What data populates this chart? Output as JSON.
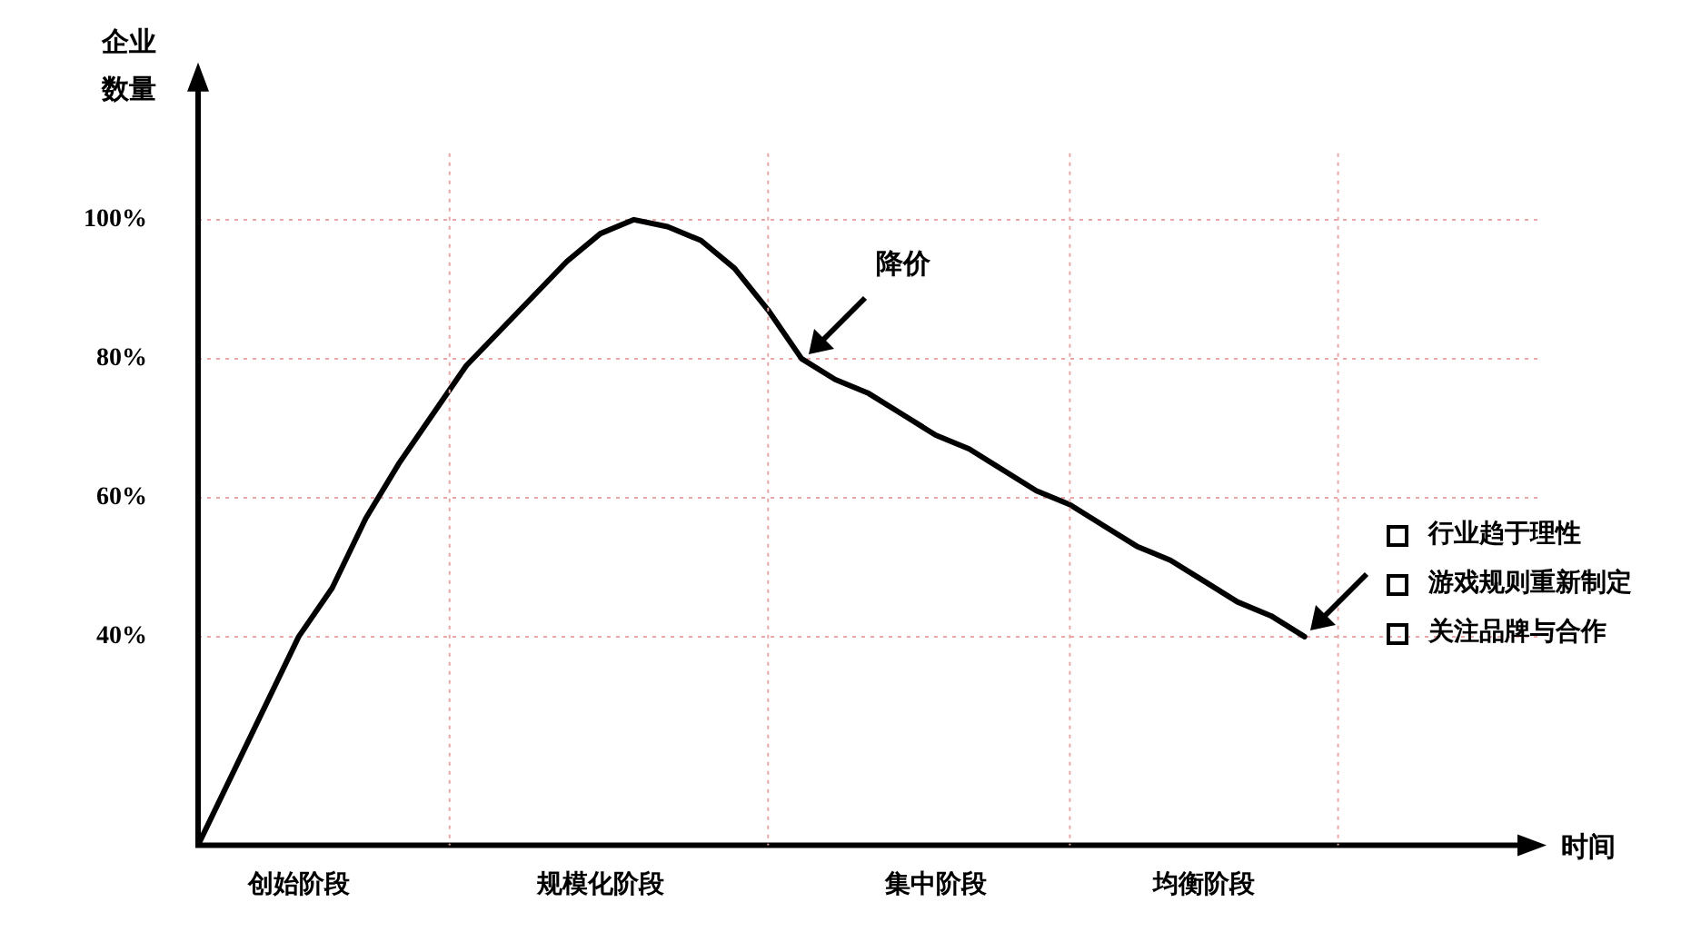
{
  "chart_data": {
    "type": "line",
    "xlabel": "时间",
    "ylabel": "企业数量",
    "categories": [
      null,
      null,
      null,
      "创始阶段",
      null,
      null,
      null,
      null,
      null,
      null,
      null,
      null,
      "规模化阶段",
      null,
      null,
      null,
      null,
      null,
      null,
      null,
      null,
      null,
      "集中阶段",
      null,
      null,
      null,
      null,
      null,
      null,
      null,
      "均衡阶段",
      null,
      null,
      null,
      null,
      null,
      null,
      null,
      null,
      null,
      null
    ],
    "series": [
      {
        "color": "#000000",
        "values": [
          10,
          20,
          30,
          40,
          47,
          57,
          65,
          72,
          79,
          84,
          89,
          94,
          98,
          100,
          99,
          97,
          93,
          87,
          80,
          77,
          75,
          72,
          69,
          67,
          64,
          61,
          59,
          56,
          53,
          51,
          48,
          45,
          43,
          40,
          null,
          null,
          null,
          null,
          null,
          null,
          null
        ]
      }
    ],
    "ylim": [
      10,
      120
    ],
    "yticks": [
      {
        "value": 40,
        "label": "40%"
      },
      {
        "value": 60,
        "label": "60%"
      },
      {
        "value": 80,
        "label": "80%"
      },
      {
        "value": 100,
        "label": "100%"
      }
    ],
    "grid": true,
    "annotations": [
      "降价",
      "行业趋于理性",
      "游戏规则重新制定",
      "关注品牌与合作"
    ],
    "legend": false
  }
}
